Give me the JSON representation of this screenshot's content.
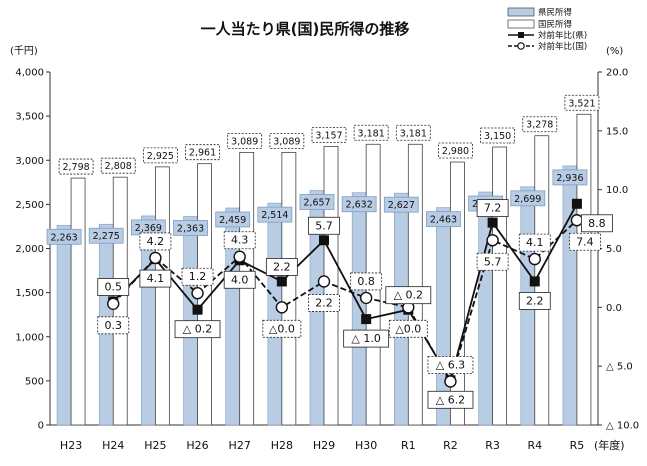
{
  "chart_data": {
    "type": "bar",
    "title": "一人当たり県(国)民所得の推移",
    "left_axis_label": "(千円)",
    "right_axis_label": "(%)",
    "x_axis_label": "(年度)",
    "categories": [
      "H23",
      "H24",
      "H25",
      "H26",
      "H27",
      "H28",
      "H29",
      "H30",
      "R1",
      "R2",
      "R3",
      "R4",
      "R5"
    ],
    "ylim_left": [
      0,
      4000
    ],
    "ylim_right": [
      -10,
      20
    ],
    "left_ticks": [
      0,
      500,
      1000,
      1500,
      2000,
      2500,
      3000,
      3500,
      4000
    ],
    "left_tick_labels": [
      "0",
      "500",
      "1,000",
      "1,500",
      "2,000",
      "2,500",
      "3,000",
      "3,500",
      "4,000"
    ],
    "right_ticks": [
      20,
      15,
      10,
      5,
      0,
      -5,
      -10
    ],
    "right_tick_labels": [
      "20.0",
      "15.0",
      "10.0",
      "5.0",
      "0.0",
      "△ 5.0",
      "△ 10.0"
    ],
    "grid": false,
    "legend_position": "top-right",
    "series": [
      {
        "name": "県民所得",
        "kind": "bar",
        "color": "#b8cce4",
        "values": [
          2263,
          2275,
          2369,
          2363,
          2459,
          2514,
          2657,
          2632,
          2627,
          2463,
          2640,
          2699,
          2936
        ],
        "labels": [
          "2,263",
          "2,275",
          "2,369",
          "2,363",
          "2,459",
          "2,514",
          "2,657",
          "2,632",
          "2,627",
          "2,463",
          "2,640",
          "2,699",
          "2,936"
        ]
      },
      {
        "name": "国民所得",
        "kind": "bar",
        "color": "#ffffff",
        "values": [
          2798,
          2808,
          2925,
          2961,
          3089,
          3089,
          3157,
          3181,
          3181,
          2980,
          3150,
          3278,
          3521
        ],
        "labels": [
          "2,798",
          "2,808",
          "2,925",
          "2,961",
          "3,089",
          "3,089",
          "3,157",
          "3,181",
          "3,181",
          "2,980",
          "3,150",
          "3,278",
          "3,521"
        ]
      },
      {
        "name": "対前年比(県)",
        "kind": "line",
        "marker": "square",
        "line_style": "solid",
        "color": "#111111",
        "values": [
          null,
          0.5,
          4.1,
          -0.2,
          4.0,
          2.2,
          5.7,
          -1.0,
          -0.2,
          -6.2,
          7.2,
          2.2,
          8.8
        ],
        "labels": [
          null,
          "0.5",
          "4.1",
          "△ 0.2",
          "4.0",
          "2.2",
          "5.7",
          "△ 1.0",
          "△ 0.2",
          "△ 6.2",
          "7.2",
          "2.2",
          "8.8"
        ]
      },
      {
        "name": "対前年比(国)",
        "kind": "line",
        "marker": "circle",
        "line_style": "dashed",
        "color": "#111111",
        "values": [
          null,
          0.3,
          4.2,
          1.2,
          4.3,
          0.0,
          2.2,
          0.8,
          0.0,
          -6.3,
          5.7,
          4.1,
          7.4
        ],
        "labels": [
          null,
          "0.3",
          "4.2",
          "1.2",
          "4.3",
          "△0.0",
          "2.2",
          "0.8",
          "△0.0",
          "△ 6.3",
          "5.7",
          "4.1",
          "7.4"
        ]
      }
    ]
  }
}
